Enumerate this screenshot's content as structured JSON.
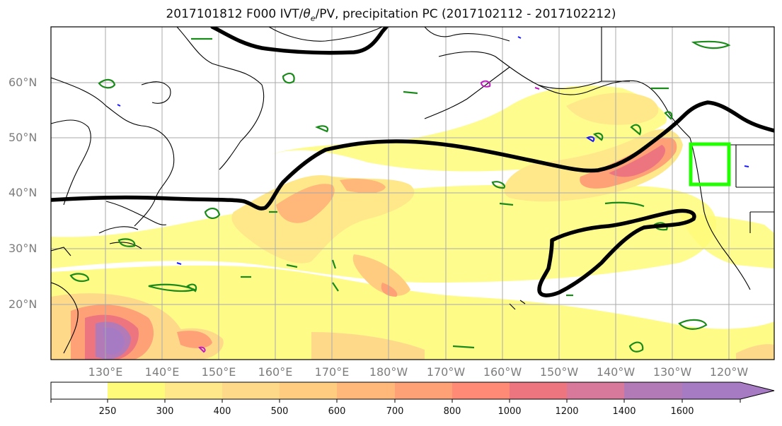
{
  "title": {
    "prefix": "2017101812 F000 IVT/",
    "theta": "θ",
    "theta_sub": "e",
    "suffix": "/PV, precipitation PC (2017102112 - 2017102212)"
  },
  "lat_labels": [
    "60°N",
    "50°N",
    "40°N",
    "30°N",
    "20°N"
  ],
  "lon_labels": [
    "130°E",
    "140°E",
    "150°E",
    "160°E",
    "170°E",
    "180°W",
    "170°W",
    "160°W",
    "150°W",
    "140°W",
    "130°W",
    "120°W"
  ],
  "colorbar": {
    "levels": [
      "250",
      "300",
      "400",
      "500",
      "600",
      "700",
      "800",
      "1000",
      "1200",
      "1400",
      "1600"
    ],
    "colors": [
      "#ffffff",
      "#fffb7a",
      "#ffe88a",
      "#ffd98a",
      "#ffcc80",
      "#ffb77a",
      "#ffa176",
      "#ff8a75",
      "#ec7580",
      "#d8789a",
      "#b37ab8",
      "#a77ac4"
    ]
  },
  "colors": {
    "ivt_contour": "#000000",
    "pv_contour_green": "#1a8a1a",
    "pv_contour_blue": "#1a1aff",
    "pv_contour_magenta": "#c01ac0",
    "target_box": "#22ff00"
  }
}
